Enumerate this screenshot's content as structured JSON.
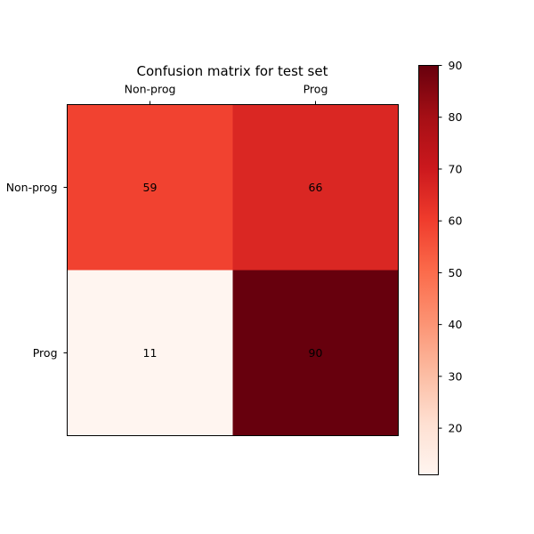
{
  "chart_data": {
    "type": "heatmap",
    "title": "Confusion matrix for test set",
    "x_categories": [
      "Non-prog",
      "Prog"
    ],
    "y_categories": [
      "Non-prog",
      "Prog"
    ],
    "values": [
      [
        59,
        66
      ],
      [
        11,
        90
      ]
    ],
    "colormap": "Reds",
    "colorbar": {
      "min": 11,
      "max": 90,
      "ticks": [
        20,
        30,
        40,
        50,
        60,
        70,
        80,
        90
      ]
    },
    "x_tick_position": "top",
    "grid": false,
    "annotations": true
  }
}
